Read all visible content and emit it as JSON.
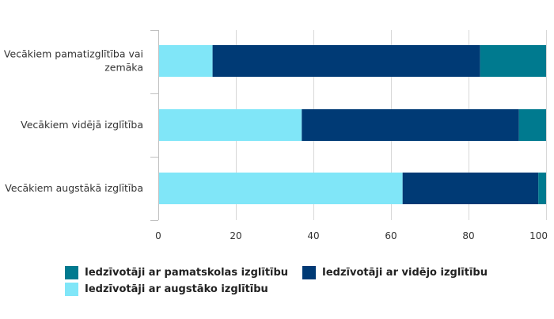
{
  "chart_data": {
    "type": "bar",
    "orientation": "horizontal",
    "stacked": true,
    "categories": [
      [
        "Vecākiem pamatizglītība vai",
        "zemāka"
      ],
      [
        "Vecākiem vidējā izglītība"
      ],
      [
        "Vecākiem augstākā izglītība"
      ]
    ],
    "series": [
      {
        "name": "Iedzīvotāji ar augstāko izglītību",
        "color": "#80e6f8",
        "values": [
          14,
          37,
          63
        ]
      },
      {
        "name": "Iedzīvotāji ar vidējo izglītību",
        "color": "#003a75",
        "values": [
          69,
          56,
          35
        ]
      },
      {
        "name": "Iedzīvotāji ar pamatskolas izglītību",
        "color": "#007a8f",
        "values": [
          18,
          8,
          3
        ]
      }
    ],
    "xlim": [
      0,
      100
    ],
    "xticks": [
      "0",
      "20",
      "40",
      "60",
      "80",
      "100"
    ],
    "grid": true,
    "legend_position": "bottom"
  },
  "legend": {
    "items": [
      {
        "label": "Iedzīvotāji ar pamatskolas izglītību",
        "color": "#007a8f"
      },
      {
        "label": "Iedzīvotāji ar vidējo izglītību",
        "color": "#003a75"
      },
      {
        "label": "Iedzīvotāji ar augstāko izglītību",
        "color": "#80e6f8"
      }
    ]
  }
}
